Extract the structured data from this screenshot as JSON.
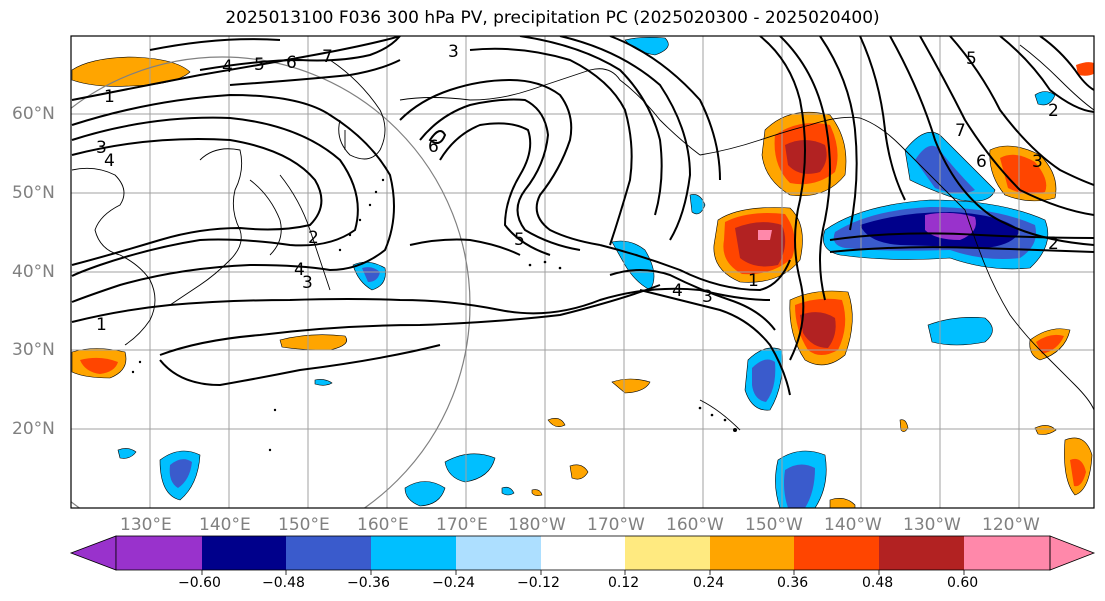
{
  "title": "2025013100 F036 300 hPa PV, precipitation PC (2025020300 - 2025020400)",
  "lat_labels": [
    "60°N",
    "50°N",
    "40°N",
    "30°N",
    "20°N"
  ],
  "lon_labels": [
    "130°E",
    "140°E",
    "150°E",
    "160°E",
    "170°E",
    "180°W",
    "170°W",
    "160°W",
    "150°W",
    "140°W",
    "130°W",
    "120°W"
  ],
  "colorbar": {
    "colors": [
      "#9932CC",
      "#00008B",
      "#3A5BCC",
      "#00BFFF",
      "#ADDFFF",
      "#FFFFFF",
      "#FFEA80",
      "#FFA500",
      "#FF4500",
      "#B22222",
      "#FF88AA"
    ],
    "tick_labels": [
      "−0.60",
      "−0.48",
      "−0.36",
      "−0.24",
      "−0.12",
      "0.12",
      "0.24",
      "0.36",
      "0.48",
      "0.60"
    ]
  },
  "contour_labels": [
    "4",
    "5",
    "6",
    "7",
    "3",
    "1",
    "3",
    "4",
    "6",
    "5",
    "2",
    "4",
    "3",
    "1",
    "4",
    "3",
    "1",
    "5",
    "7",
    "6",
    "3",
    "2",
    "2"
  ],
  "colors": {
    "contour": "#000000",
    "grid": "#A0A0A0",
    "coast": "#000000"
  }
}
